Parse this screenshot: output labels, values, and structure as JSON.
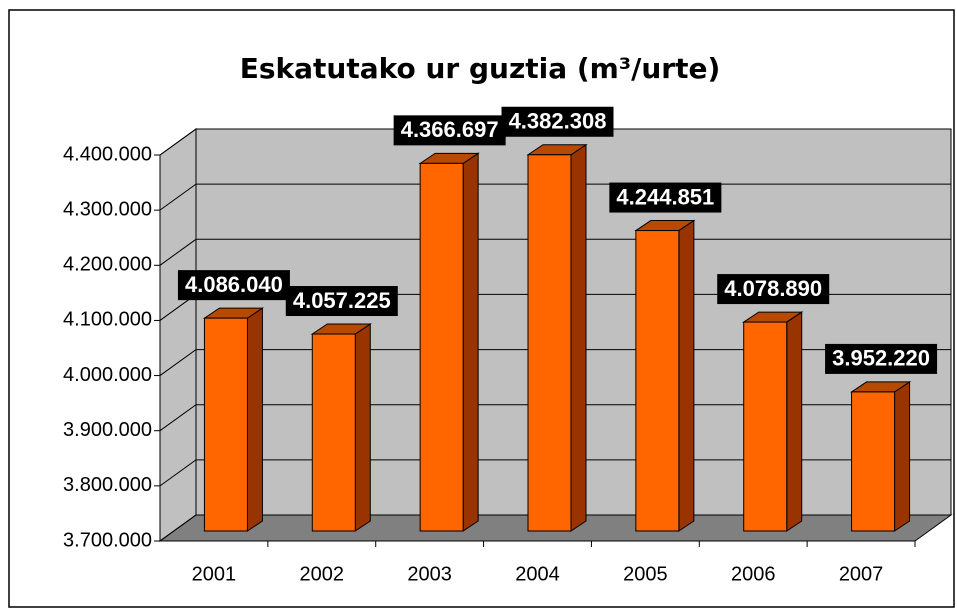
{
  "chart_data": {
    "type": "bar3d",
    "title": "Eskatutako ur guztia (m³/urte)",
    "categories": [
      "2001",
      "2002",
      "2003",
      "2004",
      "2005",
      "2006",
      "2007"
    ],
    "values": [
      4086040,
      4057225,
      4366697,
      4382308,
      4244851,
      4078890,
      3952220
    ],
    "value_labels": [
      "4.086.040",
      "4.057.225",
      "4.366.697",
      "4.382.308",
      "4.244.851",
      "4.078.890",
      "3.952.220"
    ],
    "color": "#ff6600",
    "ylim": [
      3700000,
      4400000
    ],
    "yticks": [
      {
        "value": 3700000,
        "label": "3.700.000"
      },
      {
        "value": 3800000,
        "label": "3.800.000"
      },
      {
        "value": 3900000,
        "label": "3.900.000"
      },
      {
        "value": 4000000,
        "label": "4.000.000"
      },
      {
        "value": 4100000,
        "label": "4.100.000"
      },
      {
        "value": 4200000,
        "label": "4.200.000"
      },
      {
        "value": 4300000,
        "label": "4.300.000"
      },
      {
        "value": 4400000,
        "label": "4.400.000"
      }
    ],
    "grid": true
  }
}
